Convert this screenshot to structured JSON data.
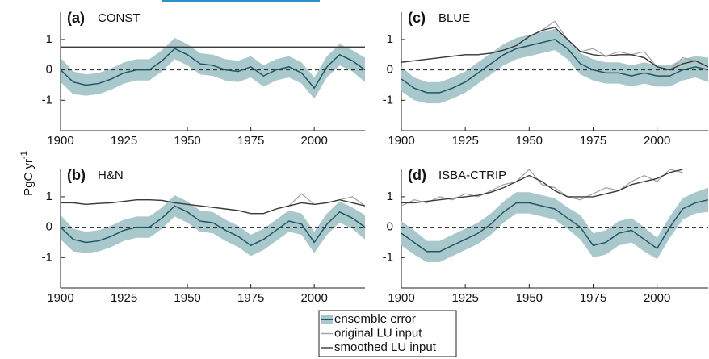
{
  "ylabel": "PgC yr",
  "ylabel_sup": "-1",
  "legend": [
    {
      "label": "ensemble error",
      "color": "#a9c8cc",
      "line_color": "#1d5866"
    },
    {
      "label": "original LU input",
      "color": "#a0a0a0"
    },
    {
      "label": "smoothed LU input",
      "color": "#3a3a3a"
    }
  ],
  "chart_data": [
    {
      "type": "line",
      "label": "(a)",
      "title": "CONST",
      "x": [
        1900,
        1905,
        1910,
        1915,
        1920,
        1925,
        1930,
        1935,
        1940,
        1945,
        1950,
        1955,
        1960,
        1965,
        1970,
        1975,
        1980,
        1985,
        1990,
        1995,
        2000,
        2005,
        2010,
        2015,
        2020
      ],
      "xlim": [
        1900,
        2020
      ],
      "xticks": [
        1900,
        1925,
        1950,
        1975,
        2000
      ],
      "ylim": [
        -2,
        1.9
      ],
      "yticks": [
        -1,
        0,
        1
      ],
      "mean": [
        0.0,
        -0.4,
        -0.5,
        -0.45,
        -0.3,
        -0.1,
        0.0,
        0.0,
        0.3,
        0.7,
        0.5,
        0.2,
        0.15,
        0.0,
        -0.05,
        0.1,
        -0.2,
        0.0,
        0.1,
        -0.1,
        -0.6,
        0.1,
        0.5,
        0.3,
        0.0
      ],
      "lower": [
        -0.4,
        -0.8,
        -0.85,
        -0.8,
        -0.65,
        -0.45,
        -0.35,
        -0.35,
        -0.05,
        0.35,
        0.15,
        -0.15,
        -0.2,
        -0.35,
        -0.4,
        -0.25,
        -0.55,
        -0.35,
        -0.25,
        -0.45,
        -0.95,
        -0.25,
        0.15,
        -0.05,
        -0.4
      ],
      "upper": [
        0.4,
        -0.05,
        -0.15,
        -0.1,
        0.05,
        0.25,
        0.35,
        0.35,
        0.65,
        1.05,
        0.85,
        0.55,
        0.5,
        0.35,
        0.3,
        0.45,
        0.15,
        0.35,
        0.45,
        0.25,
        -0.25,
        0.45,
        0.85,
        0.65,
        0.4
      ],
      "original": [
        0.75,
        0.75,
        0.75,
        0.75,
        0.75,
        0.75,
        0.75,
        0.75,
        0.75,
        0.75,
        0.75,
        0.75,
        0.75,
        0.75,
        0.75,
        0.75,
        0.75,
        0.75,
        0.75,
        0.75,
        0.75,
        0.75,
        0.75,
        0.75,
        0.75
      ],
      "smoothed": [
        0.75,
        0.75,
        0.75,
        0.75,
        0.75,
        0.75,
        0.75,
        0.75,
        0.75,
        0.75,
        0.75,
        0.75,
        0.75,
        0.75,
        0.75,
        0.75,
        0.75,
        0.75,
        0.75,
        0.75,
        0.75,
        0.75,
        0.75,
        0.75,
        0.75
      ]
    },
    {
      "type": "line",
      "label": "(b)",
      "title": "H&N",
      "x": [
        1900,
        1905,
        1910,
        1915,
        1920,
        1925,
        1930,
        1935,
        1940,
        1945,
        1950,
        1955,
        1960,
        1965,
        1970,
        1975,
        1980,
        1985,
        1990,
        1995,
        2000,
        2005,
        2010,
        2015,
        2020
      ],
      "xlim": [
        1900,
        2020
      ],
      "xticks": [
        1900,
        1925,
        1950,
        1975,
        2000
      ],
      "ylim": [
        -2,
        1.9
      ],
      "yticks": [
        -1,
        0,
        1
      ],
      "mean": [
        0.0,
        -0.4,
        -0.5,
        -0.45,
        -0.3,
        -0.1,
        0.0,
        0.0,
        0.3,
        0.7,
        0.5,
        0.2,
        0.15,
        -0.1,
        -0.3,
        -0.6,
        -0.4,
        -0.1,
        0.2,
        0.1,
        -0.5,
        0.1,
        0.5,
        0.3,
        0.0
      ],
      "lower": [
        -0.4,
        -0.8,
        -0.85,
        -0.8,
        -0.65,
        -0.45,
        -0.35,
        -0.35,
        -0.05,
        0.35,
        0.15,
        -0.15,
        -0.2,
        -0.45,
        -0.65,
        -0.95,
        -0.75,
        -0.45,
        -0.15,
        -0.25,
        -0.85,
        -0.25,
        0.15,
        -0.05,
        -0.4
      ],
      "upper": [
        0.4,
        -0.05,
        -0.15,
        -0.1,
        0.05,
        0.25,
        0.35,
        0.35,
        0.65,
        1.05,
        0.85,
        0.55,
        0.5,
        0.25,
        0.05,
        -0.25,
        -0.05,
        0.25,
        0.55,
        0.45,
        -0.15,
        0.45,
        0.85,
        0.65,
        0.4
      ],
      "original": [
        0.8,
        0.8,
        0.75,
        0.78,
        0.8,
        0.85,
        0.9,
        0.9,
        0.88,
        0.8,
        0.75,
        0.7,
        0.65,
        0.6,
        0.55,
        0.45,
        0.45,
        0.6,
        0.7,
        1.1,
        0.75,
        0.8,
        0.9,
        1.0,
        0.7
      ],
      "smoothed": [
        0.8,
        0.8,
        0.75,
        0.78,
        0.8,
        0.85,
        0.9,
        0.9,
        0.88,
        0.8,
        0.75,
        0.7,
        0.65,
        0.6,
        0.55,
        0.45,
        0.45,
        0.6,
        0.7,
        0.8,
        0.75,
        0.8,
        0.9,
        0.8,
        0.7
      ]
    },
    {
      "type": "line",
      "label": "(c)",
      "title": "BLUE",
      "x": [
        1900,
        1905,
        1910,
        1915,
        1920,
        1925,
        1930,
        1935,
        1940,
        1945,
        1950,
        1955,
        1960,
        1965,
        1970,
        1975,
        1980,
        1985,
        1990,
        1995,
        2000,
        2005,
        2010,
        2015,
        2020
      ],
      "xlim": [
        1900,
        2020
      ],
      "xticks": [
        1900,
        1925,
        1950,
        1975,
        2000
      ],
      "ylim": [
        -2,
        1.9
      ],
      "yticks": [
        -1,
        0,
        1
      ],
      "mean": [
        -0.3,
        -0.6,
        -0.75,
        -0.75,
        -0.6,
        -0.4,
        -0.1,
        0.2,
        0.5,
        0.7,
        0.8,
        0.9,
        1.0,
        0.7,
        0.2,
        0.0,
        -0.1,
        -0.1,
        -0.2,
        -0.1,
        -0.2,
        -0.2,
        0.0,
        0.1,
        0.0
      ],
      "lower": [
        -0.7,
        -1.0,
        -1.1,
        -1.1,
        -0.95,
        -0.75,
        -0.45,
        -0.15,
        0.15,
        0.35,
        0.45,
        0.55,
        0.65,
        0.35,
        -0.15,
        -0.35,
        -0.45,
        -0.45,
        -0.55,
        -0.45,
        -0.55,
        -0.55,
        -0.35,
        -0.25,
        -0.4
      ],
      "upper": [
        0.1,
        -0.25,
        -0.4,
        -0.4,
        -0.25,
        -0.05,
        0.25,
        0.55,
        0.85,
        1.05,
        1.15,
        1.25,
        1.35,
        1.05,
        0.55,
        0.35,
        0.25,
        0.25,
        0.15,
        0.25,
        0.15,
        0.15,
        0.35,
        0.45,
        0.4
      ],
      "original": [
        0.25,
        0.3,
        0.35,
        0.4,
        0.45,
        0.5,
        0.5,
        0.55,
        0.65,
        0.8,
        1.1,
        1.3,
        1.6,
        1.0,
        0.6,
        0.7,
        0.45,
        0.6,
        0.5,
        0.6,
        0.1,
        0.0,
        0.4,
        0.3,
        0.1
      ],
      "smoothed": [
        0.25,
        0.3,
        0.35,
        0.4,
        0.45,
        0.5,
        0.5,
        0.55,
        0.65,
        0.8,
        1.1,
        1.3,
        1.4,
        1.0,
        0.6,
        0.5,
        0.45,
        0.5,
        0.5,
        0.4,
        0.1,
        0.0,
        0.2,
        0.3,
        0.1
      ]
    },
    {
      "type": "line",
      "label": "(d)",
      "title": "ISBA-CTRIP",
      "x": [
        1900,
        1905,
        1910,
        1915,
        1920,
        1925,
        1930,
        1935,
        1940,
        1945,
        1950,
        1955,
        1960,
        1965,
        1970,
        1975,
        1980,
        1985,
        1990,
        1995,
        2000,
        2005,
        2010,
        2015,
        2020
      ],
      "xlim": [
        1900,
        2020
      ],
      "xticks": [
        1900,
        1925,
        1950,
        1975,
        2000
      ],
      "ylim": [
        -2,
        1.9
      ],
      "yticks": [
        -1,
        0,
        1
      ],
      "mean": [
        -0.2,
        -0.5,
        -0.8,
        -0.8,
        -0.6,
        -0.4,
        -0.2,
        0.1,
        0.5,
        0.8,
        0.8,
        0.7,
        0.6,
        0.3,
        0.0,
        -0.6,
        -0.5,
        -0.2,
        -0.1,
        -0.4,
        -0.7,
        0.0,
        0.6,
        0.8,
        0.9
      ],
      "lower": [
        -0.6,
        -0.9,
        -1.15,
        -1.15,
        -0.95,
        -0.75,
        -0.55,
        -0.25,
        0.15,
        0.45,
        0.45,
        0.35,
        0.25,
        -0.05,
        -0.4,
        -1.0,
        -0.9,
        -0.6,
        -0.5,
        -0.8,
        -1.05,
        -0.35,
        0.25,
        0.45,
        0.5
      ],
      "upper": [
        0.2,
        -0.1,
        -0.45,
        -0.45,
        -0.25,
        -0.05,
        0.15,
        0.45,
        0.85,
        1.15,
        1.15,
        1.05,
        0.95,
        0.65,
        0.4,
        -0.2,
        -0.1,
        0.2,
        0.3,
        0.0,
        -0.35,
        0.35,
        0.95,
        1.15,
        1.3
      ],
      "original": [
        0.7,
        0.9,
        0.8,
        1.0,
        0.9,
        1.1,
        1.0,
        1.2,
        1.4,
        1.5,
        1.9,
        1.4,
        1.3,
        1.0,
        0.9,
        1.1,
        1.3,
        1.2,
        1.5,
        1.7,
        1.5,
        1.9,
        1.8,
        null,
        null
      ],
      "smoothed": [
        0.8,
        0.8,
        0.85,
        0.9,
        0.95,
        1.0,
        1.05,
        1.15,
        1.3,
        1.5,
        1.7,
        1.5,
        1.2,
        1.0,
        1.0,
        1.0,
        1.1,
        1.2,
        1.4,
        1.5,
        1.6,
        1.8,
        1.9,
        null,
        null
      ]
    }
  ]
}
